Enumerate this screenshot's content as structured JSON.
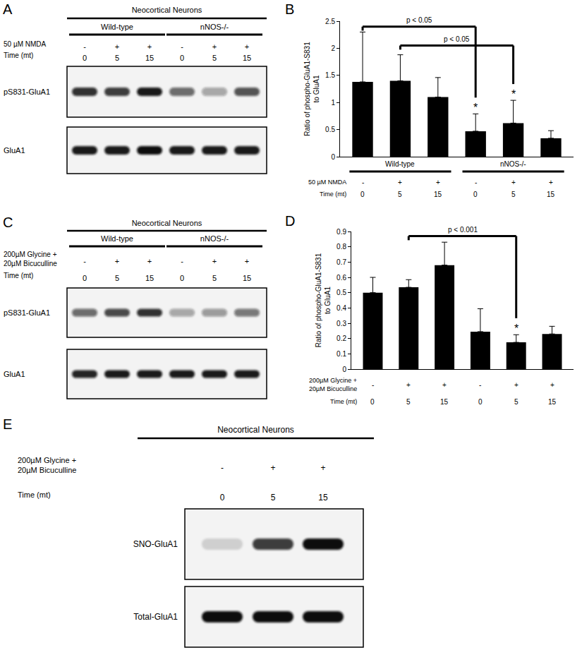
{
  "chart_data": [
    {
      "panel": "B",
      "type": "bar",
      "color": "#000000",
      "grid": false,
      "tick_labels": "y",
      "ylabel": [
        "Ratio of phospho-GluA1-S831",
        "to GluA1"
      ],
      "ylim": [
        0,
        2.5
      ],
      "yticks": [
        0,
        0.5,
        1,
        1.5,
        2,
        2.5
      ],
      "values": [
        1.38,
        1.4,
        1.1,
        0.47,
        0.62,
        0.34
      ],
      "error": [
        0.92,
        0.48,
        0.36,
        0.32,
        0.42,
        0.14
      ],
      "groups": [
        {
          "label": "Wild-type",
          "first": 0,
          "last": 2
        },
        {
          "label": "nNOS-/-",
          "first": 3,
          "last": 5
        }
      ],
      "rows": [
        {
          "label": [
            "50 µM NMDA"
          ],
          "cells": [
            "-",
            "+",
            "+",
            "-",
            "+",
            "+"
          ]
        },
        {
          "label": [
            "Time (mt)"
          ],
          "cells": [
            "0",
            "5",
            "15",
            "0",
            "5",
            "15"
          ]
        }
      ],
      "brackets": [
        {
          "from": 0,
          "to": 3,
          "y": 2.4,
          "label": "p < 0.05"
        },
        {
          "from": 1,
          "to": 4,
          "y": 2.05,
          "label": "p < 0.05"
        }
      ],
      "significance": {
        "symbol": "*",
        "bars": [
          3,
          4
        ]
      }
    },
    {
      "panel": "D",
      "type": "bar",
      "color": "#000000",
      "grid": false,
      "tick_labels": "y",
      "ylabel": [
        "Ratio of phospho-GluA1-S831",
        "to GluA1"
      ],
      "ylim": [
        0,
        0.9
      ],
      "yticks": [
        0,
        0.1,
        0.2,
        0.3,
        0.4,
        0.5,
        0.6,
        0.7,
        0.8,
        0.9
      ],
      "values": [
        0.5,
        0.535,
        0.68,
        0.245,
        0.175,
        0.23
      ],
      "error": [
        0.1,
        0.05,
        0.15,
        0.15,
        0.05,
        0.05
      ],
      "groups": [],
      "rows": [
        {
          "label": [
            "200µM Glycine +",
            "20µM Bicuculline"
          ],
          "cells": [
            "-",
            "+",
            "+",
            "-",
            "+",
            "+"
          ]
        },
        {
          "label": [
            "Time (mt)"
          ],
          "cells": [
            "0",
            "5",
            "15",
            "0",
            "5",
            "15"
          ]
        }
      ],
      "brackets": [
        {
          "from": 1,
          "to": 4,
          "y": 0.87,
          "label": "p < 0.001"
        }
      ],
      "significance": {
        "symbol": "*",
        "bars": [
          4
        ]
      }
    }
  ],
  "blots": [
    {
      "panel": "A",
      "header": "Neocortical Neurons",
      "groups": [
        {
          "label": "Wild-type",
          "first": 0,
          "last": 2
        },
        {
          "label": "nNOS-/-",
          "first": 3,
          "last": 5
        }
      ],
      "rows": [
        {
          "label": [
            "50 µM NMDA"
          ],
          "cells": [
            "-",
            "+",
            "+",
            "-",
            "+",
            "+"
          ]
        },
        {
          "label": [
            "Time (mt)"
          ],
          "cells": [
            "0",
            "5",
            "15",
            "0",
            "5",
            "15"
          ]
        }
      ],
      "bands": [
        {
          "label": "pS831-GluA1",
          "intensity": [
            0.85,
            0.8,
            0.95,
            0.6,
            0.35,
            0.7
          ]
        },
        {
          "label": "GluA1",
          "intensity": [
            0.95,
            0.95,
            1,
            0.95,
            0.95,
            0.95
          ]
        }
      ]
    },
    {
      "panel": "C",
      "header": "Neocortical Neurons",
      "groups": [
        {
          "label": "Wild-type",
          "first": 0,
          "last": 2
        },
        {
          "label": "nNOS-/-",
          "first": 3,
          "last": 5
        }
      ],
      "rows": [
        {
          "label": [
            "200µM Glycine +",
            "20µM Bicuculline"
          ],
          "cells": [
            "-",
            "+",
            "+",
            "-",
            "+",
            "+"
          ]
        },
        {
          "label": [
            "Time (mt)"
          ],
          "cells": [
            "0",
            "5",
            "15",
            "0",
            "5",
            "15"
          ]
        }
      ],
      "bands": [
        {
          "label": "pS831-GluA1",
          "intensity": [
            0.6,
            0.75,
            0.85,
            0.35,
            0.4,
            0.55
          ]
        },
        {
          "label": "GluA1",
          "intensity": [
            0.9,
            0.95,
            0.95,
            0.95,
            0.95,
            0.95
          ]
        }
      ]
    },
    {
      "panel": "E",
      "header": "Neocortical Neurons",
      "groups": [],
      "rows": [
        {
          "label": [
            "200µM Glycine +",
            "20µM Bicuculline"
          ],
          "cells": [
            "-",
            "+",
            "+"
          ]
        },
        {
          "label": [
            "Time (mt)"
          ],
          "cells": [
            "0",
            "5",
            "15"
          ]
        }
      ],
      "bands": [
        {
          "label": "SNO-GluA1",
          "intensity": [
            0.15,
            0.8,
            1
          ]
        },
        {
          "label": "Total-GluA1",
          "intensity": [
            1,
            1,
            1
          ]
        }
      ]
    }
  ]
}
